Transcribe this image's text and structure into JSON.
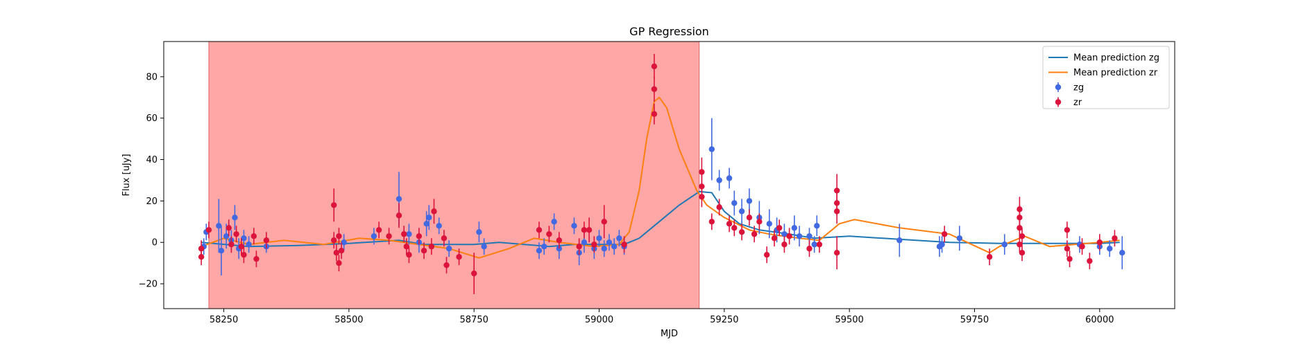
{
  "chart_data": {
    "type": "scatter",
    "title": "GP Regression",
    "xlabel": "MJD",
    "ylabel": "Flux [uJy]",
    "xlim": [
      58130,
      60150
    ],
    "ylim": [
      -32,
      97
    ],
    "xticks": [
      58250,
      58500,
      58750,
      59000,
      59250,
      59500,
      59750,
      60000
    ],
    "yticks": [
      -20,
      0,
      20,
      40,
      60,
      80
    ],
    "grid": false,
    "legend_position": "top-right",
    "shaded_region": {
      "x0": 58220,
      "x1": 59200,
      "color": "#ff0000",
      "opacity": 0.35
    },
    "series": [
      {
        "name": "Mean prediction zg",
        "kind": "line",
        "color": "#1f77b4",
        "points": [
          [
            58205,
            0
          ],
          [
            58300,
            -2
          ],
          [
            58400,
            -1.5
          ],
          [
            58500,
            -0.5
          ],
          [
            58600,
            1
          ],
          [
            58650,
            -1
          ],
          [
            58750,
            -1
          ],
          [
            58800,
            0
          ],
          [
            58900,
            -2
          ],
          [
            58950,
            -1
          ],
          [
            59050,
            -1
          ],
          [
            59080,
            2
          ],
          [
            59120,
            10
          ],
          [
            59160,
            18
          ],
          [
            59200,
            24.5
          ],
          [
            59225,
            24
          ],
          [
            59250,
            15
          ],
          [
            59280,
            9
          ],
          [
            59320,
            6
          ],
          [
            59380,
            4
          ],
          [
            59430,
            2
          ],
          [
            59500,
            3
          ],
          [
            59600,
            1.5
          ],
          [
            59700,
            0
          ],
          [
            59800,
            -0.5
          ],
          [
            59900,
            -0.5
          ],
          [
            60000,
            -0.5
          ],
          [
            60040,
            0
          ]
        ]
      },
      {
        "name": "Mean prediction zr",
        "kind": "line",
        "color": "#ff7f0e",
        "points": [
          [
            58205,
            -2
          ],
          [
            58250,
            2
          ],
          [
            58300,
            -1
          ],
          [
            58370,
            1
          ],
          [
            58450,
            -1
          ],
          [
            58520,
            2
          ],
          [
            58580,
            1
          ],
          [
            58640,
            -1
          ],
          [
            58700,
            -3
          ],
          [
            58760,
            -7.5
          ],
          [
            58820,
            -3
          ],
          [
            58870,
            2
          ],
          [
            58920,
            0
          ],
          [
            58990,
            -2
          ],
          [
            59040,
            -1
          ],
          [
            59060,
            5
          ],
          [
            59080,
            25
          ],
          [
            59095,
            50
          ],
          [
            59110,
            68
          ],
          [
            59120,
            70
          ],
          [
            59135,
            65
          ],
          [
            59160,
            45
          ],
          [
            59195,
            25
          ],
          [
            59215,
            18
          ],
          [
            59250,
            12
          ],
          [
            59300,
            6
          ],
          [
            59340,
            4
          ],
          [
            59400,
            2
          ],
          [
            59440,
            1
          ],
          [
            59480,
            9
          ],
          [
            59510,
            11
          ],
          [
            59600,
            7
          ],
          [
            59700,
            4
          ],
          [
            59780,
            -5
          ],
          [
            59800,
            -2
          ],
          [
            59850,
            3
          ],
          [
            59900,
            -2
          ],
          [
            59950,
            -1
          ],
          [
            60000,
            0
          ],
          [
            60040,
            1
          ]
        ]
      },
      {
        "name": "zg",
        "kind": "errorbar",
        "color": "#4169e1",
        "points": [
          [
            58210,
            -2,
            4
          ],
          [
            58215,
            5,
            4
          ],
          [
            58240,
            8,
            13
          ],
          [
            58245,
            -4,
            12
          ],
          [
            58255,
            3,
            6
          ],
          [
            58265,
            1,
            5
          ],
          [
            58272,
            12,
            6
          ],
          [
            58280,
            -3,
            5
          ],
          [
            58290,
            2,
            4
          ],
          [
            58300,
            -1,
            4
          ],
          [
            58335,
            -2,
            3
          ],
          [
            58490,
            0,
            4
          ],
          [
            58550,
            3,
            4
          ],
          [
            58600,
            21,
            13
          ],
          [
            58620,
            4,
            5
          ],
          [
            58640,
            0,
            5
          ],
          [
            58655,
            9,
            6
          ],
          [
            58660,
            12,
            6
          ],
          [
            58680,
            8,
            4
          ],
          [
            58700,
            -3,
            4
          ],
          [
            58760,
            5,
            5
          ],
          [
            58770,
            -2,
            4
          ],
          [
            58880,
            -4,
            4
          ],
          [
            58890,
            -2,
            4
          ],
          [
            58910,
            10,
            4
          ],
          [
            58920,
            -3,
            5
          ],
          [
            58950,
            8,
            4
          ],
          [
            58960,
            -5,
            6
          ],
          [
            58970,
            0,
            5
          ],
          [
            58990,
            -3,
            5
          ],
          [
            59000,
            2,
            4
          ],
          [
            59010,
            -3,
            4
          ],
          [
            59020,
            0,
            4
          ],
          [
            59030,
            -2,
            4
          ],
          [
            59040,
            2,
            4
          ],
          [
            59050,
            -2,
            4
          ],
          [
            59225,
            45,
            15
          ],
          [
            59240,
            30,
            5
          ],
          [
            59260,
            31,
            5
          ],
          [
            59270,
            19,
            6
          ],
          [
            59285,
            15,
            6
          ],
          [
            59300,
            20,
            6
          ],
          [
            59320,
            12,
            8
          ],
          [
            59340,
            9,
            7
          ],
          [
            59355,
            6,
            6
          ],
          [
            59370,
            4,
            5
          ],
          [
            59390,
            7,
            6
          ],
          [
            59400,
            3,
            5
          ],
          [
            59420,
            3,
            4
          ],
          [
            59430,
            -1,
            4
          ],
          [
            59435,
            8,
            5
          ],
          [
            59600,
            1,
            8
          ],
          [
            59680,
            -2,
            5
          ],
          [
            59685,
            -1,
            4
          ],
          [
            59720,
            2,
            6
          ],
          [
            59810,
            -1,
            5
          ],
          [
            59960,
            -1,
            4
          ],
          [
            60000,
            -2,
            4
          ],
          [
            60020,
            -3,
            4
          ],
          [
            60045,
            -5,
            8
          ]
        ]
      },
      {
        "name": "zr",
        "kind": "errorbar",
        "color": "#dc143c",
        "points": [
          [
            58205,
            -3,
            4
          ],
          [
            58205,
            -7,
            4
          ],
          [
            58220,
            6,
            4
          ],
          [
            58260,
            7,
            4
          ],
          [
            58265,
            -1,
            4
          ],
          [
            58275,
            4,
            4
          ],
          [
            58285,
            -2,
            4
          ],
          [
            58290,
            -6,
            4
          ],
          [
            58310,
            3,
            4
          ],
          [
            58315,
            -8,
            4
          ],
          [
            58335,
            1,
            4
          ],
          [
            58470,
            18,
            8
          ],
          [
            58470,
            1,
            4
          ],
          [
            58475,
            -5,
            4
          ],
          [
            58480,
            -10,
            4
          ],
          [
            58480,
            3,
            4
          ],
          [
            58485,
            -4,
            4
          ],
          [
            58560,
            6,
            4
          ],
          [
            58580,
            3,
            4
          ],
          [
            58600,
            13,
            6
          ],
          [
            58610,
            4,
            4
          ],
          [
            58615,
            -2,
            4
          ],
          [
            58620,
            -6,
            4
          ],
          [
            58640,
            3,
            4
          ],
          [
            58650,
            -4,
            4
          ],
          [
            58665,
            -2,
            4
          ],
          [
            58670,
            15,
            6
          ],
          [
            58690,
            2,
            4
          ],
          [
            58695,
            -11,
            4
          ],
          [
            58720,
            -7,
            4
          ],
          [
            58750,
            -15,
            10
          ],
          [
            58880,
            6,
            4
          ],
          [
            58900,
            4,
            4
          ],
          [
            58920,
            1,
            4
          ],
          [
            58960,
            -2,
            4
          ],
          [
            58970,
            6,
            4
          ],
          [
            58980,
            6,
            6
          ],
          [
            58990,
            -1,
            4
          ],
          [
            59010,
            10,
            8
          ],
          [
            59050,
            -1,
            4
          ],
          [
            59110,
            85,
            6
          ],
          [
            59110,
            74,
            6
          ],
          [
            59110,
            62,
            5
          ],
          [
            59205,
            34,
            7
          ],
          [
            59205,
            27,
            6
          ],
          [
            59205,
            22,
            5
          ],
          [
            59225,
            10,
            4
          ],
          [
            59240,
            17,
            4
          ],
          [
            59260,
            9,
            4
          ],
          [
            59270,
            7,
            4
          ],
          [
            59285,
            5,
            4
          ],
          [
            59300,
            12,
            4
          ],
          [
            59310,
            4,
            4
          ],
          [
            59320,
            10,
            4
          ],
          [
            59335,
            -6,
            4
          ],
          [
            59350,
            2,
            4
          ],
          [
            59360,
            7,
            4
          ],
          [
            59370,
            -1,
            4
          ],
          [
            59380,
            3,
            4
          ],
          [
            59420,
            -3,
            4
          ],
          [
            59440,
            -1,
            4
          ],
          [
            59475,
            25,
            8
          ],
          [
            59475,
            19,
            6
          ],
          [
            59475,
            15,
            6
          ],
          [
            59475,
            -5,
            8
          ],
          [
            59690,
            4,
            4
          ],
          [
            59780,
            -7,
            4
          ],
          [
            59840,
            16,
            6
          ],
          [
            59840,
            12,
            6
          ],
          [
            59840,
            7,
            4
          ],
          [
            59845,
            3,
            4
          ],
          [
            59840,
            -1,
            4
          ],
          [
            59845,
            -5,
            4
          ],
          [
            59935,
            6,
            4
          ],
          [
            59935,
            -3,
            4
          ],
          [
            59940,
            -8,
            4
          ],
          [
            59965,
            -2,
            4
          ],
          [
            59980,
            -9,
            4
          ],
          [
            60000,
            0,
            4
          ],
          [
            60030,
            2,
            4
          ]
        ]
      }
    ]
  }
}
